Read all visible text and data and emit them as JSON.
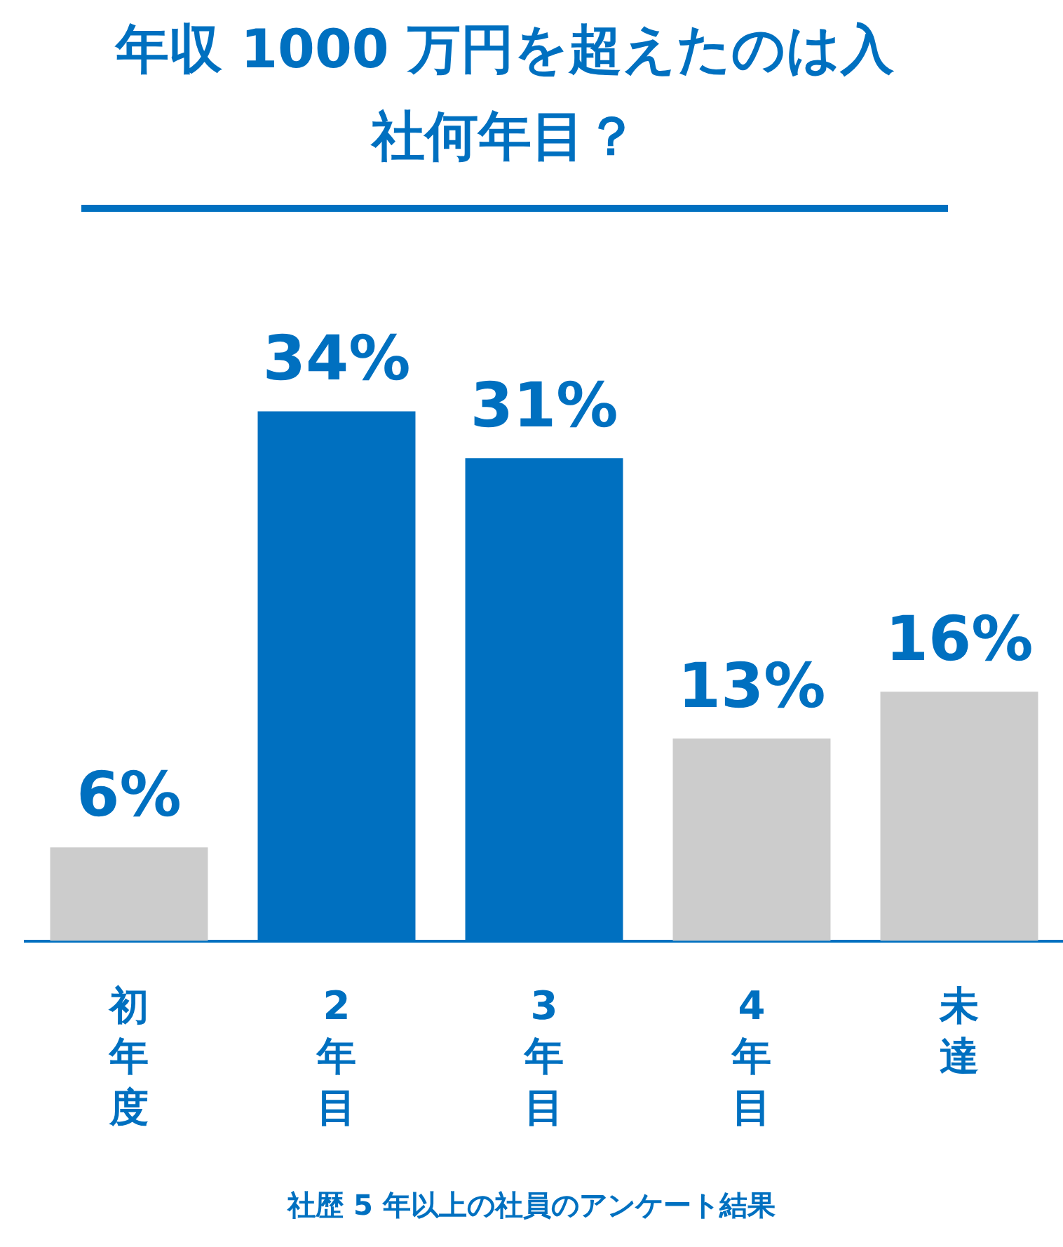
{
  "chart_data": {
    "type": "bar",
    "title": "年収 1000 万円を超えたのは入社何年目？",
    "categories": [
      "初年度",
      "2年目",
      "3年目",
      "4年目",
      "未達"
    ],
    "values": [
      6,
      34,
      31,
      13,
      16
    ],
    "colors": [
      "#cccccc",
      "#0070c0",
      "#0070c0",
      "#cccccc",
      "#cccccc"
    ],
    "value_labels": [
      "6%",
      "34%",
      "31%",
      "13%",
      "16%"
    ],
    "annotations": [
      "社歴 5 年以上の社員のアンケート結果"
    ]
  }
}
